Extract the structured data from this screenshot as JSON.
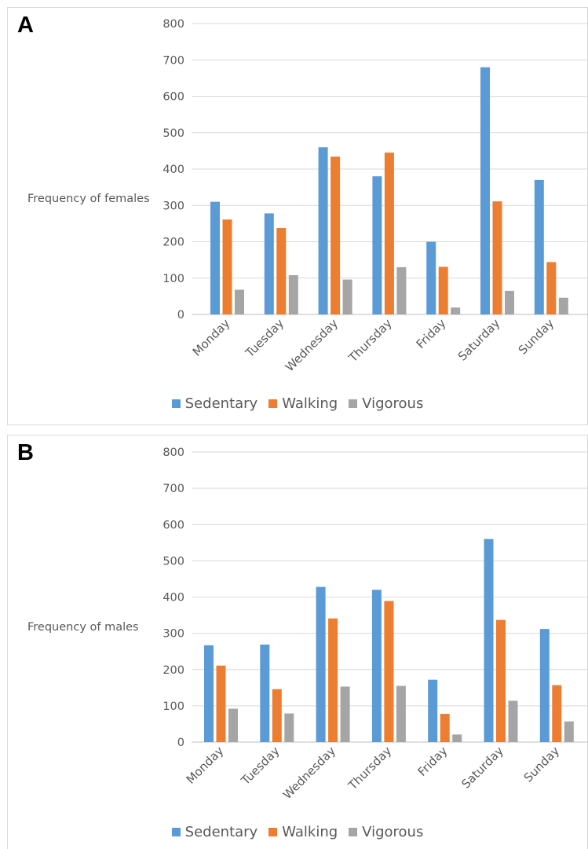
{
  "chart_data": [
    {
      "type": "bar",
      "panel_label": "A",
      "ylabel": "Frequency of females",
      "xlabel": "",
      "ylim": [
        0,
        800
      ],
      "yticks": [
        0,
        100,
        200,
        300,
        400,
        500,
        600,
        700,
        800
      ],
      "grid": true,
      "legend_position": "bottom",
      "categories": [
        "Monday",
        "Tuesday",
        "Wednesday",
        "Thursday",
        "Friday",
        "Saturday",
        "Sunday"
      ],
      "series": [
        {
          "name": "Sedentary",
          "color": "#5b9bd5",
          "values": [
            310,
            278,
            460,
            380,
            200,
            680,
            370
          ]
        },
        {
          "name": "Walking",
          "color": "#ed7d31",
          "values": [
            261,
            238,
            434,
            445,
            131,
            311,
            144
          ]
        },
        {
          "name": "Vigorous",
          "color": "#a5a5a5",
          "values": [
            68,
            108,
            96,
            130,
            19,
            65,
            46
          ]
        }
      ]
    },
    {
      "type": "bar",
      "panel_label": "B",
      "ylabel": "Frequency of males",
      "xlabel": "",
      "ylim": [
        0,
        800
      ],
      "yticks": [
        0,
        100,
        200,
        300,
        400,
        500,
        600,
        700,
        800
      ],
      "grid": true,
      "legend_position": "bottom",
      "categories": [
        "Monday",
        "Tuesday",
        "Wednesday",
        "Thursday",
        "Friday",
        "Saturday",
        "Sunday"
      ],
      "series": [
        {
          "name": "Sedentary",
          "color": "#5b9bd5",
          "values": [
            267,
            269,
            428,
            420,
            172,
            560,
            312
          ]
        },
        {
          "name": "Walking",
          "color": "#ed7d31",
          "values": [
            211,
            146,
            341,
            389,
            78,
            337,
            157
          ]
        },
        {
          "name": "Vigorous",
          "color": "#a5a5a5",
          "values": [
            92,
            79,
            153,
            155,
            21,
            114,
            57
          ]
        }
      ]
    }
  ]
}
